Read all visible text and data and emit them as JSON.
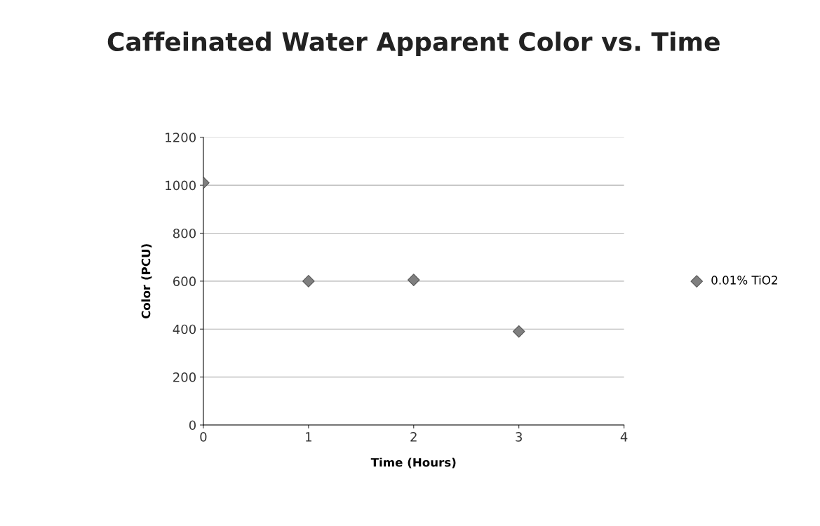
{
  "chart_data": {
    "type": "scatter",
    "title": "Caffeinated Water Apparent Color vs. Time",
    "xlabel": "Time (Hours)",
    "ylabel": "Color (PCU)",
    "x": [
      0,
      1,
      2,
      3
    ],
    "series": [
      {
        "name": "0.01% TiO2",
        "color": "#7f7f7f",
        "values": [
          1010,
          600,
          605,
          390
        ]
      }
    ],
    "xlim": [
      0,
      4
    ],
    "xticks": [
      0,
      1,
      2,
      3,
      4
    ],
    "ylim": [
      0,
      1200
    ],
    "yticks": [
      0,
      200,
      400,
      600,
      800,
      1000,
      1200
    ],
    "grid": "y",
    "legend": "right",
    "marker": "diamond"
  }
}
